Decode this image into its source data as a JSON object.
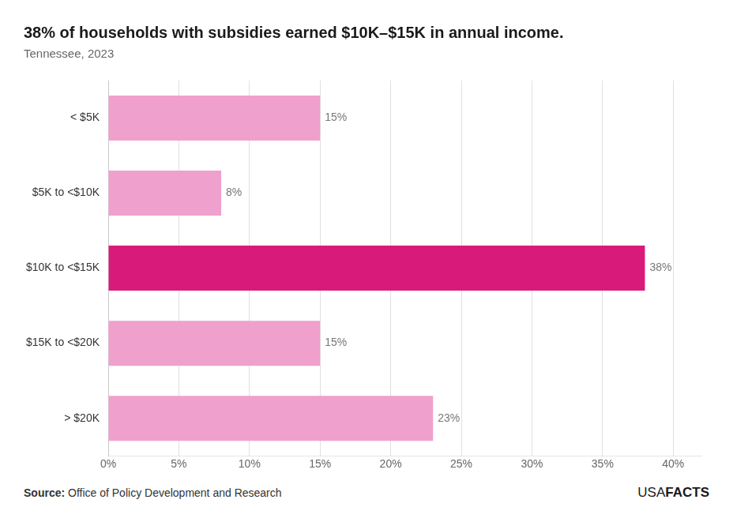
{
  "chart_data": {
    "type": "bar",
    "orientation": "horizontal",
    "title": "38% of households with subsidies earned $10K–$15K in annual income.",
    "subtitle": "Tennessee, 2023",
    "categories": [
      "< $5K",
      "$5K to <$10K",
      "$10K to <$15K",
      "$15K to <$20K",
      "> $20K"
    ],
    "values": [
      15,
      8,
      38,
      15,
      23
    ],
    "value_labels": [
      "15%",
      "8%",
      "38%",
      "15%",
      "23%"
    ],
    "data_labels": true,
    "colors": [
      "#f0a0cc",
      "#f0a0cc",
      "#d81b7a",
      "#f0a0cc",
      "#f0a0cc"
    ],
    "xlim": [
      0,
      42
    ],
    "xticks": [
      {
        "value": 0,
        "label": "0%"
      },
      {
        "value": 5,
        "label": "5%"
      },
      {
        "value": 10,
        "label": "10%"
      },
      {
        "value": 15,
        "label": "15%"
      },
      {
        "value": 20,
        "label": "20%"
      },
      {
        "value": 25,
        "label": "25%"
      },
      {
        "value": 30,
        "label": "30%"
      },
      {
        "value": 35,
        "label": "35%"
      },
      {
        "value": 40,
        "label": "40%"
      }
    ],
    "grid": "x",
    "annotations": [
      "Source:",
      "Office of Policy Development and Research",
      "USA",
      "FACTS"
    ]
  }
}
